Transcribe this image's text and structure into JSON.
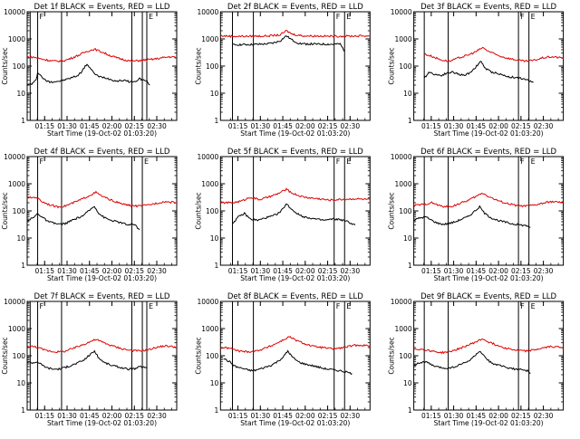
{
  "layout": {
    "rows": 3,
    "cols": 3
  },
  "colors": {
    "events": "#000000",
    "lld": "#dd0000",
    "axes": "#000000"
  },
  "shared": {
    "ylabel": "Counts/sec",
    "xlabel": "Start Time (19-Oct-02 01:03:20)",
    "x_ticks": [
      "01:15",
      "01:30",
      "01:45",
      "02:00",
      "02:15",
      "02:30"
    ],
    "y_ticks": [
      "1",
      "10",
      "100",
      "1000",
      "10000"
    ],
    "marker_labels": [
      "F",
      "E"
    ]
  },
  "chart_data": [
    {
      "type": "line",
      "title": "Det 1f BLACK = Events, RED = LLD",
      "x_unit": "minutes after 01:03:20",
      "xlim": [
        0,
        100
      ],
      "ylim": [
        1,
        10000
      ],
      "yscale": "log",
      "vlines": [
        2,
        7,
        23,
        70,
        77,
        80
      ],
      "marker_positions": [
        {
          "label": "F",
          "x": 7
        },
        {
          "label": "E",
          "x": 80
        }
      ],
      "series": [
        {
          "name": "Events",
          "x": [
            0,
            3,
            6,
            7,
            9,
            12,
            15,
            18,
            22,
            26,
            30,
            34,
            37,
            40,
            44,
            48,
            52,
            56,
            60,
            64,
            68,
            72,
            75,
            78,
            80,
            82
          ],
          "values": [
            20,
            22,
            30,
            60,
            45,
            30,
            26,
            27,
            28,
            32,
            38,
            45,
            70,
            120,
            60,
            40,
            38,
            32,
            28,
            30,
            27,
            26,
            35,
            30,
            28,
            20
          ]
        },
        {
          "name": "LLD",
          "x": [
            0,
            5,
            10,
            15,
            20,
            25,
            30,
            35,
            40,
            45,
            50,
            55,
            60,
            65,
            70,
            75,
            80,
            85,
            90,
            95,
            100
          ],
          "values": [
            220,
            210,
            180,
            160,
            150,
            160,
            200,
            260,
            350,
            420,
            330,
            250,
            200,
            170,
            150,
            160,
            170,
            180,
            200,
            220,
            210
          ]
        }
      ]
    },
    {
      "type": "line",
      "title": "Det 2f BLACK = Events, RED = LLD",
      "x_unit": "minutes after 01:03:20",
      "xlim": [
        0,
        100
      ],
      "ylim": [
        1,
        10000
      ],
      "yscale": "log",
      "vlines": [
        8,
        22,
        76,
        83
      ],
      "marker_positions": [
        {
          "label": "F",
          "x": 76
        },
        {
          "label": "E",
          "x": 83
        }
      ],
      "series": [
        {
          "name": "Events",
          "x": [
            8,
            15,
            20,
            25,
            30,
            35,
            40,
            44,
            48,
            52,
            56,
            60,
            65,
            70,
            75,
            80,
            83
          ],
          "values": [
            600,
            620,
            620,
            630,
            650,
            700,
            850,
            1300,
            900,
            700,
            650,
            650,
            640,
            640,
            630,
            650,
            350
          ]
        },
        {
          "name": "LLD",
          "x": [
            0,
            10,
            20,
            30,
            40,
            44,
            48,
            55,
            65,
            75,
            85,
            100
          ],
          "values": [
            1300,
            1250,
            1250,
            1280,
            1400,
            2000,
            1500,
            1300,
            1280,
            1250,
            1270,
            1300
          ]
        }
      ]
    },
    {
      "type": "line",
      "title": "Det 3f BLACK = Events, RED = LLD",
      "x_unit": "minutes after 01:03:20",
      "xlim": [
        0,
        100
      ],
      "ylim": [
        1,
        10000
      ],
      "yscale": "log",
      "vlines": [
        7,
        23,
        70,
        77
      ],
      "marker_positions": [
        {
          "label": "F",
          "x": 70
        },
        {
          "label": "E",
          "x": 77
        }
      ],
      "series": [
        {
          "name": "Events",
          "x": [
            7,
            10,
            14,
            18,
            22,
            26,
            30,
            34,
            38,
            42,
            45,
            48,
            52,
            56,
            60,
            64,
            68,
            72,
            76,
            80
          ],
          "values": [
            35,
            60,
            50,
            45,
            55,
            60,
            50,
            45,
            60,
            100,
            150,
            80,
            60,
            55,
            45,
            40,
            38,
            35,
            30,
            25
          ]
        },
        {
          "name": "LLD",
          "x": [
            7,
            12,
            18,
            24,
            30,
            36,
            42,
            46,
            50,
            56,
            62,
            68,
            74,
            80,
            86,
            92,
            100
          ],
          "values": [
            280,
            230,
            170,
            150,
            200,
            250,
            350,
            480,
            350,
            250,
            200,
            170,
            150,
            160,
            200,
            220,
            200
          ]
        }
      ]
    },
    {
      "type": "line",
      "title": "Det 4f BLACK = Events, RED = LLD",
      "x_unit": "minutes after 01:03:20",
      "xlim": [
        0,
        100
      ],
      "ylim": [
        1,
        10000
      ],
      "yscale": "log",
      "vlines": [
        7,
        23,
        70,
        77
      ],
      "marker_positions": [
        {
          "label": "F",
          "x": 7
        },
        {
          "label": "E",
          "x": 77
        }
      ],
      "series": [
        {
          "name": "Events",
          "x": [
            0,
            4,
            7,
            10,
            14,
            18,
            22,
            26,
            30,
            34,
            38,
            42,
            45,
            48,
            52,
            56,
            60,
            64,
            68,
            72,
            75
          ],
          "values": [
            45,
            55,
            80,
            60,
            40,
            35,
            32,
            35,
            45,
            55,
            70,
            110,
            150,
            80,
            55,
            45,
            40,
            35,
            30,
            32,
            20
          ]
        },
        {
          "name": "LLD",
          "x": [
            0,
            6,
            10,
            15,
            20,
            25,
            30,
            36,
            42,
            46,
            50,
            56,
            62,
            68,
            74,
            80,
            86,
            92,
            100
          ],
          "values": [
            300,
            320,
            220,
            170,
            140,
            150,
            190,
            260,
            380,
            480,
            350,
            250,
            190,
            160,
            150,
            160,
            190,
            220,
            200
          ]
        }
      ]
    },
    {
      "type": "line",
      "title": "Det 5f BLACK = Events, RED = LLD",
      "x_unit": "minutes after 01:03:20",
      "xlim": [
        0,
        100
      ],
      "ylim": [
        1,
        10000
      ],
      "yscale": "log",
      "vlines": [
        8,
        22,
        76,
        83
      ],
      "marker_positions": [
        {
          "label": "F",
          "x": 76
        },
        {
          "label": "E",
          "x": 83
        }
      ],
      "series": [
        {
          "name": "Events",
          "x": [
            8,
            12,
            16,
            20,
            25,
            30,
            35,
            40,
            44,
            48,
            52,
            56,
            60,
            65,
            70,
            75,
            80,
            85,
            90
          ],
          "values": [
            35,
            60,
            80,
            50,
            45,
            55,
            65,
            90,
            180,
            110,
            75,
            60,
            55,
            48,
            45,
            50,
            48,
            40,
            30
          ]
        },
        {
          "name": "LLD",
          "x": [
            0,
            8,
            14,
            20,
            26,
            32,
            38,
            44,
            48,
            54,
            60,
            66,
            72,
            78,
            84,
            90,
            100
          ],
          "values": [
            200,
            200,
            230,
            320,
            260,
            320,
            420,
            620,
            450,
            340,
            300,
            280,
            250,
            260,
            270,
            280,
            260
          ]
        }
      ]
    },
    {
      "type": "line",
      "title": "Det 6f BLACK = Events, RED = LLD",
      "x_unit": "minutes after 01:03:20",
      "xlim": [
        0,
        100
      ],
      "ylim": [
        1,
        10000
      ],
      "yscale": "log",
      "vlines": [
        7,
        23,
        70,
        77
      ],
      "marker_positions": [
        {
          "label": "F",
          "x": 70
        },
        {
          "label": "E",
          "x": 77
        }
      ],
      "series": [
        {
          "name": "Events",
          "x": [
            0,
            4,
            8,
            12,
            16,
            20,
            24,
            28,
            32,
            36,
            40,
            44,
            48,
            52,
            56,
            60,
            64,
            68,
            72,
            76,
            78
          ],
          "values": [
            45,
            55,
            60,
            45,
            35,
            32,
            35,
            40,
            50,
            60,
            90,
            140,
            75,
            55,
            45,
            40,
            35,
            32,
            30,
            28,
            25
          ]
        },
        {
          "name": "LLD",
          "x": [
            0,
            6,
            12,
            18,
            24,
            30,
            36,
            42,
            46,
            50,
            56,
            62,
            68,
            74,
            80,
            86,
            92,
            100
          ],
          "values": [
            160,
            170,
            200,
            150,
            140,
            180,
            240,
            350,
            460,
            340,
            240,
            190,
            160,
            150,
            160,
            190,
            220,
            200
          ]
        }
      ]
    },
    {
      "type": "line",
      "title": "Det 7f BLACK = Events, RED = LLD",
      "x_unit": "minutes after 01:03:20",
      "xlim": [
        0,
        100
      ],
      "ylim": [
        1,
        10000
      ],
      "yscale": "log",
      "vlines": [
        2,
        7,
        23,
        70,
        77,
        80
      ],
      "marker_positions": [
        {
          "label": "F",
          "x": 7
        },
        {
          "label": "E",
          "x": 80
        }
      ],
      "series": [
        {
          "name": "Events",
          "x": [
            0,
            4,
            7,
            10,
            14,
            18,
            22,
            26,
            30,
            34,
            38,
            42,
            45,
            48,
            52,
            56,
            60,
            64,
            68,
            72,
            76,
            80
          ],
          "values": [
            60,
            55,
            60,
            45,
            35,
            32,
            33,
            38,
            45,
            55,
            70,
            110,
            150,
            80,
            55,
            45,
            40,
            35,
            32,
            33,
            40,
            35
          ]
        },
        {
          "name": "LLD",
          "x": [
            0,
            6,
            12,
            18,
            24,
            30,
            36,
            42,
            46,
            50,
            56,
            62,
            68,
            74,
            80,
            86,
            92,
            100
          ],
          "values": [
            230,
            210,
            160,
            140,
            140,
            180,
            240,
            330,
            400,
            320,
            240,
            190,
            160,
            150,
            160,
            200,
            230,
            210
          ]
        }
      ]
    },
    {
      "type": "line",
      "title": "Det 8f BLACK = Events, RED = LLD",
      "x_unit": "minutes after 01:03:20",
      "xlim": [
        0,
        100
      ],
      "ylim": [
        1,
        10000
      ],
      "yscale": "log",
      "vlines": [
        8,
        22,
        76,
        83
      ],
      "marker_positions": [
        {
          "label": "F",
          "x": 76
        },
        {
          "label": "E",
          "x": 83
        }
      ],
      "series": [
        {
          "name": "Events",
          "x": [
            2,
            6,
            10,
            14,
            18,
            22,
            26,
            30,
            34,
            38,
            42,
            45,
            48,
            52,
            56,
            60,
            64,
            68,
            72,
            76,
            80,
            84,
            88
          ],
          "values": [
            80,
            60,
            40,
            35,
            30,
            28,
            32,
            38,
            45,
            60,
            90,
            150,
            90,
            60,
            50,
            45,
            40,
            35,
            32,
            30,
            28,
            25,
            22
          ]
        },
        {
          "name": "LLD",
          "x": [
            0,
            6,
            12,
            18,
            24,
            30,
            36,
            42,
            46,
            50,
            56,
            62,
            68,
            74,
            80,
            86,
            92,
            100
          ],
          "values": [
            200,
            190,
            150,
            140,
            150,
            190,
            260,
            380,
            500,
            380,
            280,
            220,
            200,
            180,
            190,
            220,
            250,
            230
          ]
        }
      ]
    },
    {
      "type": "line",
      "title": "Det 9f BLACK = Events, RED = LLD",
      "x_unit": "minutes after 01:03:20",
      "xlim": [
        0,
        100
      ],
      "ylim": [
        1,
        10000
      ],
      "yscale": "log",
      "vlines": [
        7,
        23,
        70,
        77
      ],
      "marker_positions": [
        {
          "label": "F",
          "x": 70
        },
        {
          "label": "E",
          "x": 77
        }
      ],
      "series": [
        {
          "name": "Events",
          "x": [
            0,
            4,
            8,
            12,
            16,
            20,
            24,
            28,
            32,
            36,
            40,
            44,
            48,
            52,
            56,
            60,
            64,
            68,
            72,
            76,
            78
          ],
          "values": [
            45,
            55,
            60,
            45,
            38,
            35,
            35,
            40,
            50,
            60,
            90,
            150,
            80,
            55,
            45,
            40,
            35,
            32,
            30,
            28,
            22
          ]
        },
        {
          "name": "LLD",
          "x": [
            0,
            6,
            12,
            18,
            24,
            30,
            36,
            42,
            46,
            50,
            56,
            62,
            68,
            74,
            80,
            86,
            92,
            100
          ],
          "values": [
            180,
            170,
            150,
            130,
            140,
            180,
            240,
            330,
            420,
            320,
            240,
            190,
            160,
            150,
            160,
            190,
            220,
            200
          ]
        }
      ]
    }
  ]
}
